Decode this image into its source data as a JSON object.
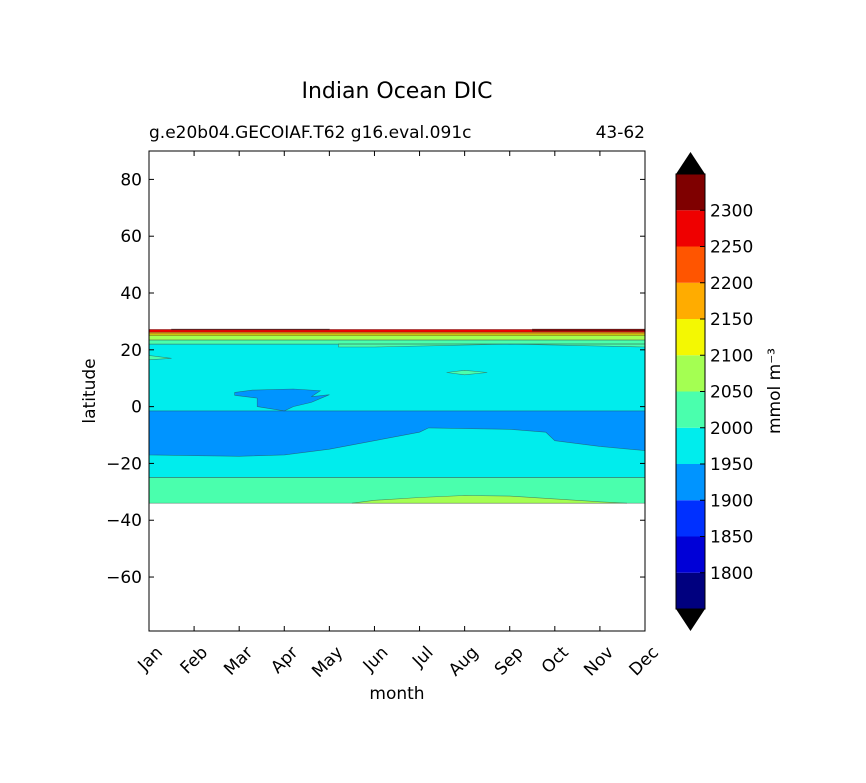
{
  "chart_data": {
    "type": "heatmap",
    "title": "Indian Ocean DIC",
    "subtitle_left": "g.e20b04.GECOIAF.T62 g16.eval.091c",
    "subtitle_right": "43-62",
    "xlabel": "month",
    "ylabel": "latitude",
    "x_categories": [
      "Jan",
      "Feb",
      "Mar",
      "Apr",
      "May",
      "Jun",
      "Jul",
      "Aug",
      "Sep",
      "Oct",
      "Nov",
      "Dec"
    ],
    "xlim": [
      0,
      11
    ],
    "ylim": [
      -79,
      90
    ],
    "y_ticks": [
      80,
      60,
      40,
      20,
      0,
      -20,
      -40,
      -60
    ],
    "y_tick_labels": [
      "80",
      "60",
      "40",
      "20",
      "0",
      "−20",
      "−40",
      "−60"
    ],
    "colorbar": {
      "label": "mmol m⁻³",
      "levels": [
        1750,
        1800,
        1850,
        1900,
        1950,
        2000,
        2050,
        2100,
        2150,
        2200,
        2250,
        2300,
        2350
      ],
      "tick_values": [
        1800,
        1850,
        1900,
        1950,
        2000,
        2050,
        2100,
        2150,
        2200,
        2250,
        2300
      ],
      "tick_labels": [
        "1800",
        "1850",
        "1900",
        "1950",
        "2000",
        "2050",
        "2100",
        "2150",
        "2200",
        "2250",
        "2300"
      ],
      "colors": [
        "#00007f",
        "#0000d7",
        "#0030ff",
        "#0094ff",
        "#00eded",
        "#4affad",
        "#a4ff52",
        "#f4f802",
        "#ffac00",
        "#ff5500",
        "#ef0000",
        "#7f0000"
      ],
      "extend_low_color": "#000000",
      "extend_high_color": "#000000"
    },
    "regions": [
      {
        "level": 1950,
        "color": "#00eded",
        "outline": [
          [
            0,
            22
          ],
          [
            11,
            22
          ],
          [
            11,
            -25
          ],
          [
            0,
            -25
          ]
        ]
      },
      {
        "level": 2000,
        "color": "#4affad",
        "outline": [
          [
            0,
            -25
          ],
          [
            11,
            -25
          ],
          [
            11,
            -34
          ],
          [
            0,
            -34
          ]
        ]
      },
      {
        "level": 2000,
        "color": "#4affad",
        "outline": [
          [
            0,
            22
          ],
          [
            11,
            22
          ],
          [
            11,
            23.5
          ],
          [
            0,
            23.5
          ]
        ]
      },
      {
        "level": 2050,
        "color": "#a4ff52",
        "outline": [
          [
            0,
            23.5
          ],
          [
            11,
            23.5
          ],
          [
            11,
            25
          ],
          [
            0,
            25
          ]
        ]
      },
      {
        "level": 2100,
        "color": "#f4f802",
        "outline": [
          [
            0,
            25
          ],
          [
            11,
            25
          ],
          [
            11,
            25.6
          ],
          [
            0,
            25.6
          ]
        ]
      },
      {
        "level": 2150,
        "color": "#ffac00",
        "outline": [
          [
            0,
            25.6
          ],
          [
            11,
            25.6
          ],
          [
            11,
            26.2
          ],
          [
            0,
            26.2
          ]
        ]
      },
      {
        "level": 2250,
        "color": "#ef0000",
        "outline": [
          [
            0,
            26.2
          ],
          [
            11,
            26.2
          ],
          [
            11,
            27.2
          ],
          [
            0,
            27.2
          ]
        ]
      },
      {
        "level": 2300,
        "color": "#7f0000",
        "outline": [
          [
            0.5,
            27
          ],
          [
            4,
            27
          ],
          [
            4,
            27.3
          ],
          [
            0.5,
            27.3
          ]
        ]
      },
      {
        "level": 2300,
        "color": "#7f0000",
        "outline": [
          [
            8.5,
            26.6
          ],
          [
            11,
            26.6
          ],
          [
            11,
            27.3
          ],
          [
            8.5,
            27.3
          ]
        ]
      },
      {
        "level": 2000,
        "color": "#4affad",
        "outline": [
          [
            4.2,
            21
          ],
          [
            5,
            21
          ],
          [
            6.5,
            21.5
          ],
          [
            8,
            22
          ],
          [
            11,
            21
          ],
          [
            11,
            22
          ],
          [
            4.2,
            22
          ]
        ]
      },
      {
        "level": 1900,
        "color": "#0094ff",
        "outline": [
          [
            0,
            -1.5
          ],
          [
            11,
            -1.5
          ],
          [
            11,
            -15.5
          ],
          [
            10,
            -14
          ],
          [
            9,
            -12
          ],
          [
            8.8,
            -9
          ],
          [
            8,
            -8
          ],
          [
            6.2,
            -7.5
          ],
          [
            6,
            -9
          ],
          [
            5,
            -12
          ],
          [
            4,
            -15
          ],
          [
            3,
            -17
          ],
          [
            2,
            -17.5
          ],
          [
            0,
            -17
          ]
        ]
      },
      {
        "level": 1900,
        "color": "#0094ff",
        "outline": [
          [
            1.9,
            5
          ],
          [
            2.3,
            5.8
          ],
          [
            3.2,
            6.2
          ],
          [
            3.8,
            5.6
          ],
          [
            3.6,
            3.5
          ],
          [
            4,
            4.2
          ],
          [
            3.6,
            1.5
          ],
          [
            3.2,
            0
          ],
          [
            3,
            -1.5
          ],
          [
            2.4,
            0
          ],
          [
            2.4,
            3
          ],
          [
            1.9,
            4
          ]
        ]
      },
      {
        "level": 2000,
        "color": "#4affad",
        "outline": [
          [
            6.6,
            12
          ],
          [
            7,
            12.8
          ],
          [
            7.5,
            12
          ],
          [
            7,
            11.2
          ]
        ]
      },
      {
        "level": 2050,
        "color": "#a4ff52",
        "outline": [
          [
            4.5,
            -34
          ],
          [
            5,
            -33
          ],
          [
            6,
            -32
          ],
          [
            7,
            -31.3
          ],
          [
            8,
            -31.5
          ],
          [
            9,
            -32.5
          ],
          [
            10,
            -33.5
          ],
          [
            10.6,
            -34
          ]
        ]
      },
      {
        "level": 2000,
        "color": "#4affad",
        "outline": [
          [
            0,
            16.5
          ],
          [
            0.5,
            17
          ],
          [
            0,
            18
          ]
        ]
      }
    ]
  }
}
